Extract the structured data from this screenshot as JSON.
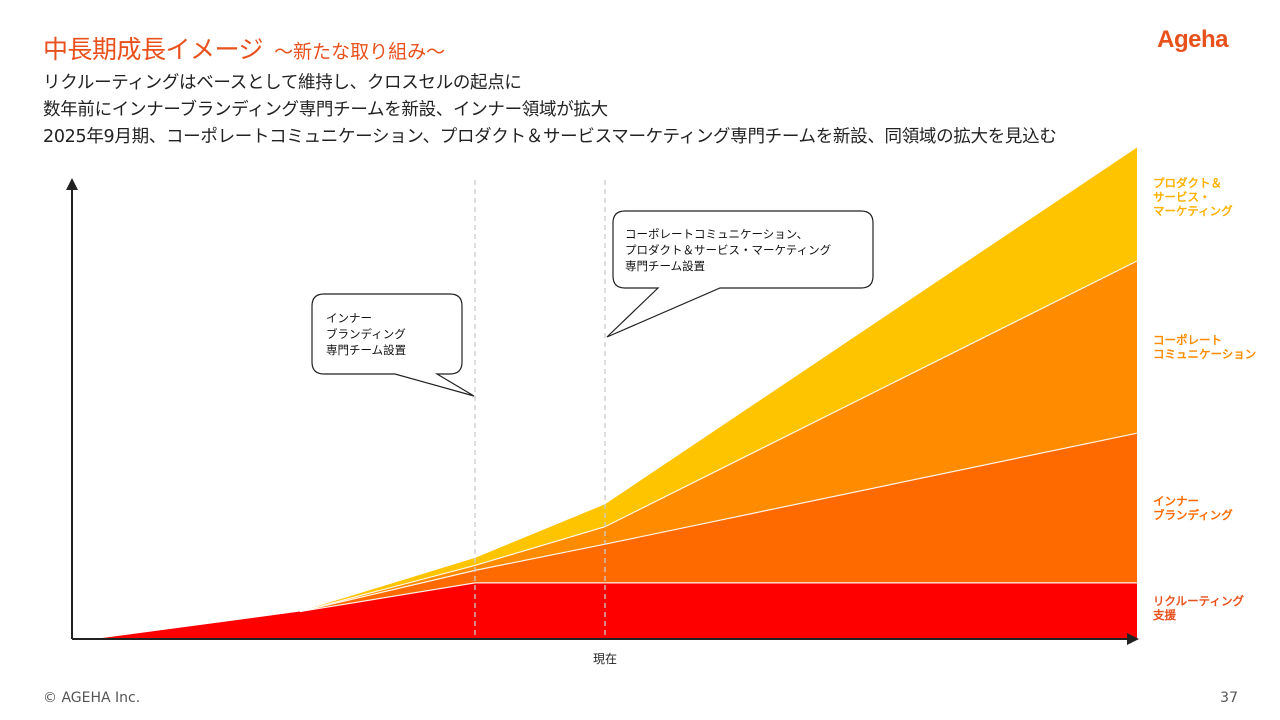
{
  "header": {
    "title": "中長期成長イメージ",
    "subtitle": "～新たな取り組み～",
    "logo_text": "Ageha"
  },
  "description": [
    "リクルーティングはベースとして維持し、クロスセルの起点に",
    "数年前にインナーブランディング専門チームを新設、インナー領域が拡大",
    "2025年9月期、コーポレートコミュニケーション、プロダクト＆サービスマーケティング専門チームを新設、同領域の拡大を見込む"
  ],
  "chart_data": {
    "type": "area",
    "stacked": true,
    "x": [
      0,
      1,
      2,
      3,
      4
    ],
    "x_tick_label": "現在",
    "x_tick_index": 3,
    "series": [
      {
        "name": "リクルーティング\n支援",
        "values": [
          0,
          22,
          45,
          45,
          45
        ],
        "color": "#ff0000"
      },
      {
        "name": "インナー\nブランディング",
        "values": [
          0,
          0,
          10,
          31,
          120
        ],
        "color": "#ff6a00"
      },
      {
        "name": "コーポレート\nコミュニケーション",
        "values": [
          0,
          0,
          4,
          14,
          138
        ],
        "color": "#ff8c00"
      },
      {
        "name": "プロダクト＆\nサービス・\nマーケティング",
        "values": [
          0,
          0,
          6,
          18,
          91
        ],
        "color": "#ffc400"
      }
    ],
    "ylim": [
      0,
      400
    ],
    "grid": false,
    "legend": "right",
    "annotations": [
      {
        "text": "インナー\nブランディング\n専門チーム設置",
        "x": 2
      },
      {
        "text": "コーポレートコミュニケーション、\nプロダクト＆サービス・マーケティング\n専門チーム設置",
        "x": 3
      }
    ]
  },
  "footer": {
    "copyright": "© AGEHA Inc.",
    "page_number": "37"
  }
}
